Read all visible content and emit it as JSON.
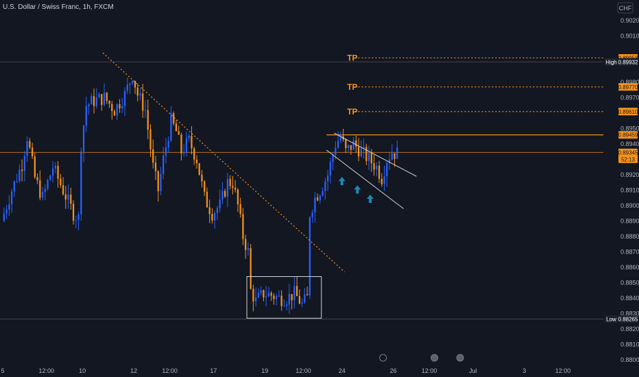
{
  "header": {
    "title": "U.S. Dollar / Swiss Franc, 1h, FXCM"
  },
  "currency_button": {
    "label": "CHF"
  },
  "colors": {
    "background": "#131722",
    "up_candle": "#2962ff",
    "down_candle": "#f7931a",
    "tp_line": "#f7931a",
    "trendline": "#f7931a",
    "channel": "#d1d4dc",
    "arrow": "#1e88b8"
  },
  "chart_data": {
    "type": "candlestick",
    "symbol": "U.S. Dollar / Swiss Franc",
    "timeframe": "1h",
    "source": "FXCM",
    "y_axis": {
      "range": [
        0.88,
        0.902
      ],
      "ticks": [
        "0.90200",
        "0.90100",
        "0.89800",
        "0.89700",
        "0.89500",
        "0.89400",
        "0.89200",
        "0.89100",
        "0.89000",
        "0.88900",
        "0.88800",
        "0.88700",
        "0.88600",
        "0.88500",
        "0.88400",
        "0.88300",
        "0.88200",
        "0.88100",
        "0.88000"
      ],
      "tick_values": [
        0.902,
        0.901,
        0.898,
        0.897,
        0.895,
        0.894,
        0.892,
        0.891,
        0.89,
        0.889,
        0.888,
        0.887,
        0.886,
        0.885,
        0.884,
        0.883,
        0.882,
        0.881,
        0.88
      ]
    },
    "x_axis": {
      "ticks": [
        "5",
        "12:00",
        "10",
        "12",
        "12:00",
        "17",
        "19",
        "12:00",
        "24",
        "26",
        "12:00",
        "Jul",
        "3",
        "12:00"
      ],
      "tick_index": [
        0,
        17,
        31,
        51,
        65,
        82,
        102,
        117,
        132,
        152,
        166,
        183,
        203,
        218
      ],
      "range_index": [
        0,
        232
      ]
    },
    "price_labels": [
      {
        "label": "",
        "value": "0.89958",
        "style": "orange"
      },
      {
        "label": "High",
        "value": "0.89932",
        "style": "dark"
      },
      {
        "label": "",
        "value": "0.89770",
        "style": "orange"
      },
      {
        "label": "",
        "value": "0.89610",
        "style": "orange"
      },
      {
        "label": "",
        "value": "0.89459",
        "style": "orange"
      },
      {
        "label": "",
        "value": "0.89345",
        "style": "orange"
      },
      {
        "label": "",
        "value": "52:13",
        "style": "orange"
      },
      {
        "label": "Low",
        "value": "0.88265",
        "style": "dark"
      }
    ],
    "tp_levels": [
      {
        "label": "TP",
        "price": 0.89958
      },
      {
        "label": "TP",
        "price": 0.8977
      },
      {
        "label": "TP",
        "price": 0.8961
      }
    ],
    "high_line": 0.89932,
    "low_line": 0.88265,
    "resistance_line": 0.89459,
    "current_price": 0.89345,
    "trendline": {
      "from": [
        39,
        0.8999
      ],
      "to": [
        133,
        0.8857
      ]
    },
    "consolidation_box": {
      "from_index": 95,
      "to_index": 124,
      "top": 0.8854,
      "bottom": 0.8827
    },
    "channel": {
      "upper": {
        "from": [
          129,
          0.8947
        ],
        "to": [
          161,
          0.8919
        ]
      },
      "lower": {
        "from": [
          126,
          0.8936
        ],
        "to": [
          156,
          0.8898
        ]
      }
    },
    "arrows_index": [
      [
        132,
        0.89155
      ],
      [
        138,
        0.891
      ],
      [
        143,
        0.8904
      ]
    ],
    "events_index": [
      148,
      168,
      178
    ],
    "candles": []
  }
}
